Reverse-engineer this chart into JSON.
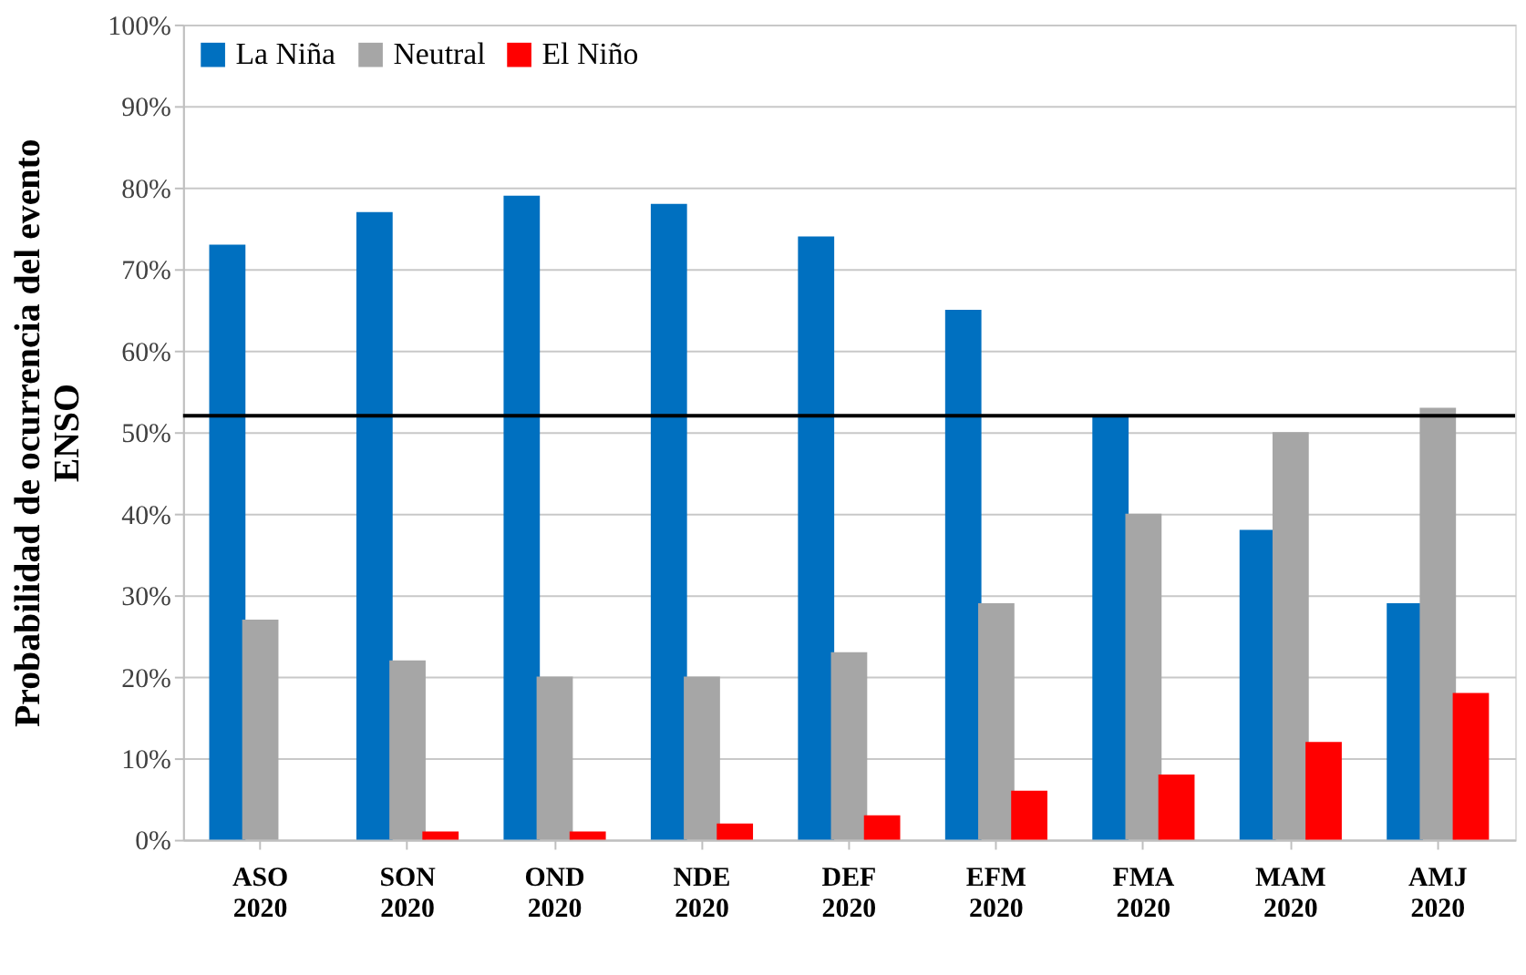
{
  "chart_data": {
    "type": "bar",
    "ylabel": "Probabilidad de ocurrencia del evento ENSO",
    "categories": [
      "ASO 2020",
      "SON 2020",
      "OND 2020",
      "NDE 2020",
      "DEF 2020",
      "EFM 2020",
      "FMA 2020",
      "MAM 2020",
      "AMJ 2020"
    ],
    "series": [
      {
        "name": "La Niña",
        "color": "#0070c0",
        "values": [
          73,
          77,
          79,
          78,
          74,
          65,
          52,
          38,
          29
        ]
      },
      {
        "name": "Neutral",
        "color": "#a6a6a6",
        "values": [
          27,
          22,
          20,
          20,
          23,
          29,
          40,
          50,
          53
        ]
      },
      {
        "name": "El Niño",
        "color": "#ff0000",
        "values": [
          0,
          1,
          1,
          2,
          3,
          6,
          8,
          12,
          18
        ]
      }
    ],
    "ylim": [
      0,
      100
    ],
    "yticks": [
      {
        "value": 0,
        "label": "0%"
      },
      {
        "value": 10,
        "label": "10%"
      },
      {
        "value": 20,
        "label": "20%"
      },
      {
        "value": 30,
        "label": "30%"
      },
      {
        "value": 40,
        "label": "40%"
      },
      {
        "value": 50,
        "label": "50%"
      },
      {
        "value": 60,
        "label": "60%"
      },
      {
        "value": 70,
        "label": "70%"
      },
      {
        "value": 80,
        "label": "80%"
      },
      {
        "value": 90,
        "label": "90%"
      },
      {
        "value": 100,
        "label": "100%"
      }
    ],
    "ref_lines": [
      {
        "axis": "y",
        "value": 52,
        "color": "#000000"
      }
    ],
    "grid": "y",
    "legend": "top left"
  }
}
